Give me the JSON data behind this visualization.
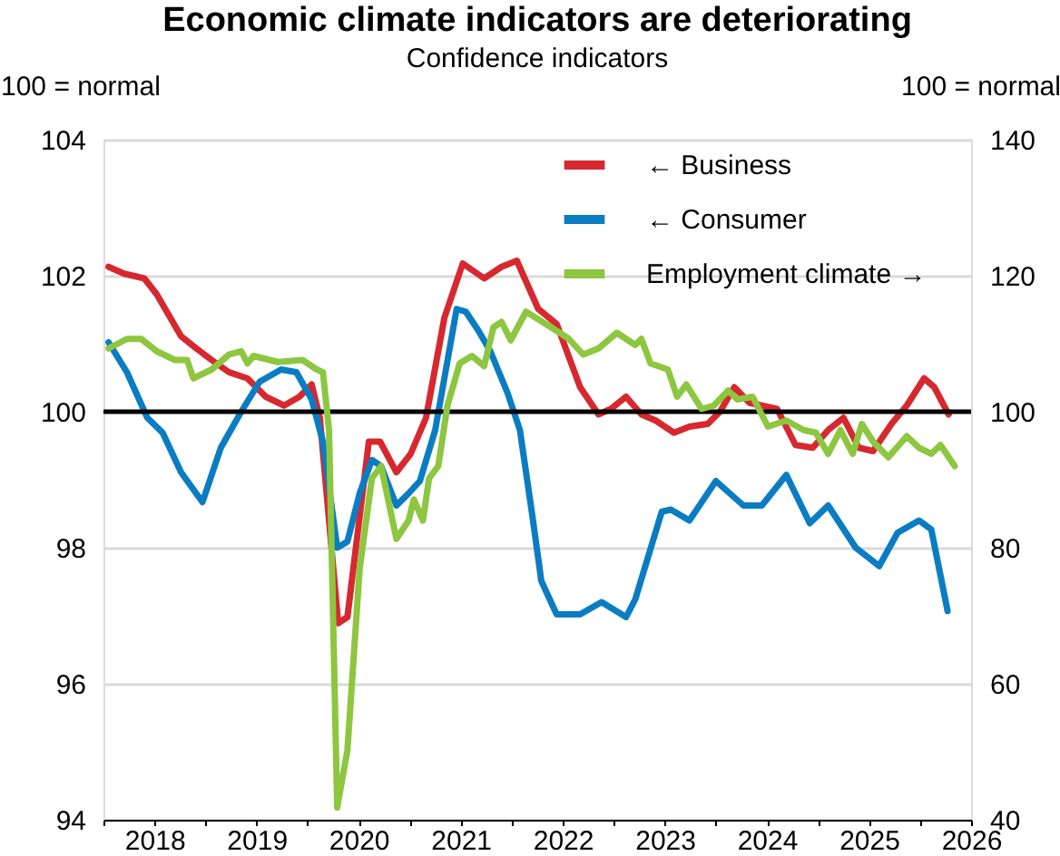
{
  "chart_data": {
    "type": "line",
    "title": "Economic climate indicators are deteriorating",
    "subtitle": "Confidence indicators",
    "ylabel": "100 = normal",
    "y2label": "100 = normal",
    "xlim": [
      2018,
      2026.5
    ],
    "xticks": [
      {
        "value": 2018,
        "label": null
      },
      {
        "value": 2018.5,
        "label": "2018"
      },
      {
        "value": 2019,
        "label": null
      },
      {
        "value": 2019.5,
        "label": "2019"
      },
      {
        "value": 2020,
        "label": null
      },
      {
        "value": 2020.5,
        "label": "2020"
      },
      {
        "value": 2021,
        "label": null
      },
      {
        "value": 2021.5,
        "label": "2021"
      },
      {
        "value": 2022,
        "label": null
      },
      {
        "value": 2022.5,
        "label": "2022"
      },
      {
        "value": 2023,
        "label": null
      },
      {
        "value": 2023.5,
        "label": "2023"
      },
      {
        "value": 2024,
        "label": null
      },
      {
        "value": 2024.5,
        "label": "2024"
      },
      {
        "value": 2025,
        "label": null
      },
      {
        "value": 2025.5,
        "label": "2025"
      },
      {
        "value": 2026,
        "label": null
      },
      {
        "value": 2026.5,
        "label": "2026"
      }
    ],
    "ylim": [
      94,
      104
    ],
    "yticks": [
      94,
      96,
      98,
      100,
      102,
      104
    ],
    "y2lim": [
      40,
      140
    ],
    "y2ticks": [
      40,
      60,
      80,
      100,
      120,
      140
    ],
    "grid": "y",
    "legend": "top right",
    "line_style": "solid",
    "marker": "none",
    "ref_lines": [
      {
        "axis": "y",
        "value": 100,
        "color": "#000000",
        "line_style": "solid"
      }
    ],
    "series": [
      {
        "name": "← Business",
        "color": "#d7282f",
        "x": [
          2018.05,
          2018.2,
          2018.4,
          2018.52,
          2018.76,
          2018.91,
          2019.06,
          2019.23,
          2019.41,
          2019.59,
          2019.77,
          2019.92,
          2020.04,
          2020.12,
          2020.3,
          2020.39,
          2020.6,
          2020.71,
          2020.87,
          2021.01,
          2021.16,
          2021.34,
          2021.52,
          2021.73,
          2021.9,
          2022.05,
          2022.26,
          2022.44,
          2022.67,
          2022.85,
          2022.97,
          2023.12,
          2023.27,
          2023.41,
          2023.59,
          2023.74,
          2023.92,
          2024.04,
          2024.18,
          2024.33,
          2024.6,
          2024.78,
          2024.95,
          2025.1,
          2025.25,
          2025.4,
          2025.54,
          2025.72,
          2025.87,
          2026.04,
          2026.14,
          2026.28
        ],
        "values": [
          102.13,
          102.03,
          101.96,
          101.73,
          101.11,
          100.93,
          100.76,
          100.58,
          100.49,
          100.22,
          100.09,
          100.22,
          100.4,
          99.91,
          96.89,
          96.98,
          99.56,
          99.56,
          99.11,
          99.38,
          99.91,
          101.38,
          102.18,
          101.96,
          102.13,
          102.22,
          101.51,
          101.29,
          100.36,
          99.96,
          100.04,
          100.22,
          99.96,
          99.87,
          99.69,
          99.78,
          99.82,
          100.0,
          100.36,
          100.13,
          100.04,
          99.51,
          99.47,
          99.73,
          99.91,
          99.47,
          99.42,
          99.82,
          100.09,
          100.49,
          100.36,
          99.96
        ]
      },
      {
        "name": "← Consumer",
        "color": "#0a7dc2",
        "x": [
          2018.05,
          2018.23,
          2018.43,
          2018.58,
          2018.76,
          2018.97,
          2019.15,
          2019.35,
          2019.53,
          2019.74,
          2019.89,
          2020.04,
          2020.15,
          2020.29,
          2020.39,
          2020.51,
          2020.63,
          2020.72,
          2020.87,
          2020.99,
          2021.1,
          2021.25,
          2021.46,
          2021.55,
          2021.67,
          2021.79,
          2021.96,
          2022.08,
          2022.2,
          2022.29,
          2022.44,
          2022.67,
          2022.88,
          2023.12,
          2023.21,
          2023.47,
          2023.56,
          2023.74,
          2024.0,
          2024.27,
          2024.45,
          2024.69,
          2024.92,
          2025.1,
          2025.37,
          2025.6,
          2025.78,
          2025.99,
          2026.11,
          2026.27
        ],
        "values": [
          101.02,
          100.58,
          99.91,
          99.69,
          99.11,
          98.67,
          99.47,
          100.0,
          100.44,
          100.62,
          100.58,
          100.18,
          99.56,
          98.0,
          98.09,
          98.8,
          99.29,
          99.2,
          98.62,
          98.8,
          98.98,
          99.73,
          101.51,
          101.47,
          101.2,
          100.89,
          100.27,
          99.73,
          98.49,
          97.51,
          97.02,
          97.02,
          97.2,
          96.98,
          97.24,
          98.53,
          98.56,
          98.4,
          98.98,
          98.62,
          98.62,
          99.07,
          98.36,
          98.62,
          98.0,
          97.73,
          98.22,
          98.4,
          98.27,
          97.07
        ]
      },
      {
        "name": "Employment climate →",
        "color": "#8dc63f",
        "axis": "y2",
        "x": [
          2018.05,
          2018.23,
          2018.37,
          2018.52,
          2018.7,
          2018.82,
          2018.88,
          2019.06,
          2019.23,
          2019.35,
          2019.41,
          2019.47,
          2019.71,
          2019.95,
          2020.09,
          2020.15,
          2020.21,
          2020.29,
          2020.39,
          2020.51,
          2020.63,
          2020.72,
          2020.87,
          2020.99,
          2021.04,
          2021.13,
          2021.19,
          2021.28,
          2021.37,
          2021.49,
          2021.61,
          2021.73,
          2021.82,
          2021.9,
          2021.99,
          2022.14,
          2022.29,
          2022.47,
          2022.56,
          2022.7,
          2022.85,
          2023.03,
          2023.21,
          2023.27,
          2023.36,
          2023.53,
          2023.62,
          2023.71,
          2023.86,
          2023.98,
          2024.12,
          2024.21,
          2024.36,
          2024.51,
          2024.69,
          2024.86,
          2024.98,
          2025.1,
          2025.22,
          2025.34,
          2025.43,
          2025.54,
          2025.69,
          2025.87,
          2025.99,
          2026.11,
          2026.2,
          2026.34
        ],
        "values": [
          109.3,
          110.7,
          110.7,
          108.9,
          107.6,
          107.6,
          104.9,
          106.2,
          108.4,
          108.9,
          107.1,
          108.2,
          107.3,
          107.6,
          106.2,
          105.8,
          97.3,
          41.8,
          50.2,
          76.9,
          90.2,
          92.0,
          81.3,
          84.0,
          87.1,
          84.0,
          90.2,
          92.0,
          100.9,
          107.1,
          108.2,
          106.7,
          112.4,
          113.2,
          110.5,
          114.7,
          113.3,
          111.6,
          110.7,
          108.4,
          109.3,
          111.6,
          109.8,
          110.7,
          107.1,
          106.2,
          102.2,
          104.0,
          100.4,
          100.9,
          103.1,
          101.8,
          102.2,
          97.8,
          98.7,
          97.3,
          96.9,
          93.8,
          97.3,
          93.8,
          98.2,
          95.6,
          93.3,
          96.4,
          94.7,
          93.8,
          95.1,
          92.0
        ]
      }
    ]
  }
}
